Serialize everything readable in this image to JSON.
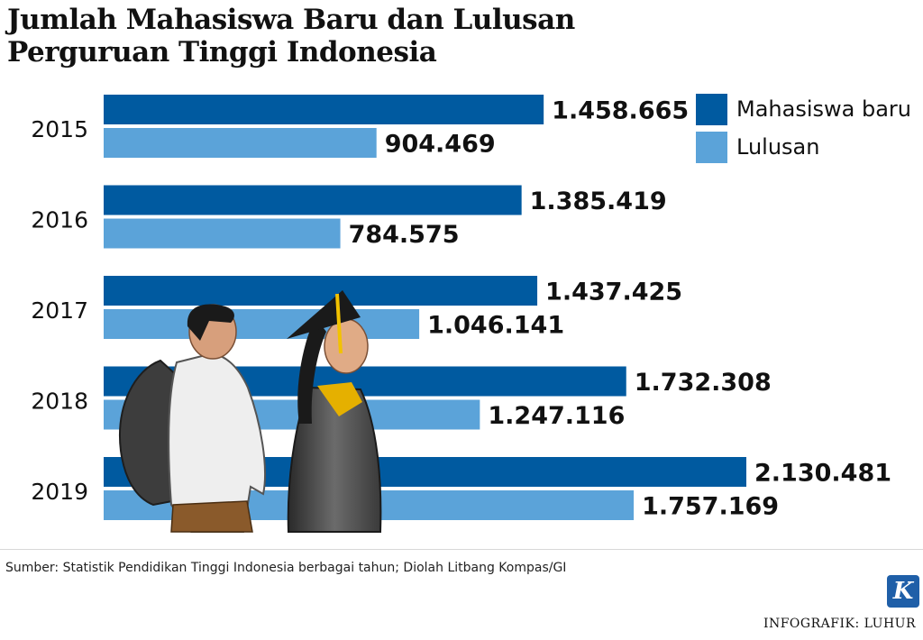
{
  "title": {
    "line1": "Jumlah Mahasiswa Baru dan Lulusan",
    "line2": "Perguruan Tinggi Indonesia"
  },
  "chart_data": {
    "type": "bar",
    "orientation": "horizontal",
    "categories": [
      "2015",
      "2016",
      "2017",
      "2018",
      "2019"
    ],
    "series": [
      {
        "name": "Mahasiswa baru",
        "color": "#005aa0",
        "values": [
          1458665,
          1385419,
          1437425,
          1732308,
          2130481
        ],
        "labels": [
          "1.458.665",
          "1.385.419",
          "1.437.425",
          "1.732.308",
          "2.130.481"
        ]
      },
      {
        "name": "Lulusan",
        "color": "#5ba3d9",
        "values": [
          904469,
          784575,
          1046141,
          1247116,
          1757169
        ],
        "labels": [
          "904.469",
          "784.575",
          "1.046.141",
          "1.247.116",
          "1.757.169"
        ]
      }
    ],
    "legend_position": "top-right",
    "grid": false
  },
  "source": "Sumber: Statistik Pendidikan Tinggi Indonesia berbagai tahun; Diolah Litbang Kompas/GI",
  "logo": {
    "letter": "K",
    "color": "#1f5fa8"
  },
  "credit": "INFOGRAFIK: LUHUR"
}
